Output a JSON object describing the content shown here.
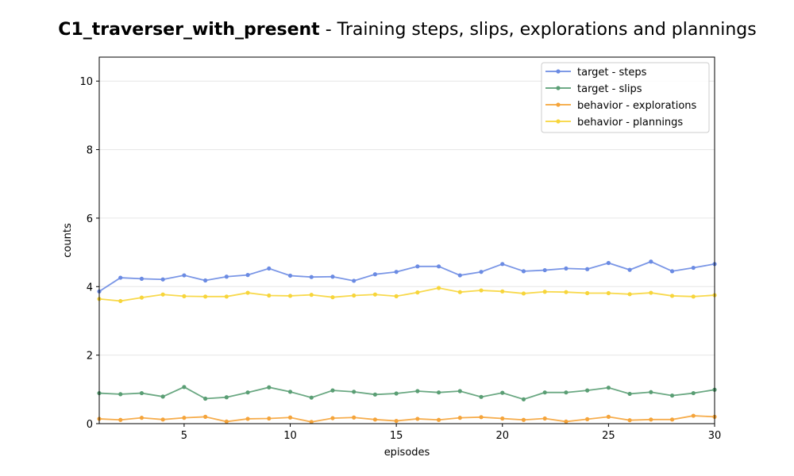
{
  "chart_data": {
    "type": "line",
    "title_bold": "C1_traverser_with_present",
    "title_rest": " - Training steps, slips, explorations and plannings",
    "xlabel": "episodes",
    "ylabel": "counts",
    "xlim": [
      1,
      30
    ],
    "ylim": [
      0,
      10.7
    ],
    "xticks": [
      5,
      10,
      15,
      20,
      25,
      30
    ],
    "yticks": [
      0,
      2,
      4,
      6,
      8,
      10
    ],
    "grid": "horizontal",
    "legend_position": "top-right",
    "x": [
      1,
      2,
      3,
      4,
      5,
      6,
      7,
      8,
      9,
      10,
      11,
      12,
      13,
      14,
      15,
      16,
      17,
      18,
      19,
      20,
      21,
      22,
      23,
      24,
      25,
      26,
      27,
      28,
      29,
      30
    ],
    "series": [
      {
        "name": "target - steps",
        "color": "#6b8be3",
        "values": [
          3.86,
          4.26,
          4.23,
          4.21,
          4.33,
          4.18,
          4.29,
          4.34,
          4.53,
          4.32,
          4.28,
          4.29,
          4.17,
          4.36,
          4.43,
          4.59,
          4.59,
          4.33,
          4.43,
          4.66,
          4.45,
          4.48,
          4.53,
          4.51,
          4.69,
          4.49,
          4.73,
          4.45,
          4.55,
          4.66
        ]
      },
      {
        "name": "target - slips",
        "color": "#5a9e74",
        "values": [
          0.89,
          0.86,
          0.89,
          0.79,
          1.07,
          0.73,
          0.77,
          0.91,
          1.06,
          0.93,
          0.76,
          0.97,
          0.93,
          0.85,
          0.88,
          0.95,
          0.91,
          0.95,
          0.78,
          0.9,
          0.71,
          0.91,
          0.91,
          0.97,
          1.05,
          0.87,
          0.92,
          0.82,
          0.89,
          0.99
        ]
      },
      {
        "name": "behavior - explorations",
        "color": "#f5a43a",
        "values": [
          0.14,
          0.11,
          0.17,
          0.12,
          0.17,
          0.2,
          0.06,
          0.14,
          0.15,
          0.18,
          0.05,
          0.16,
          0.18,
          0.12,
          0.08,
          0.14,
          0.11,
          0.17,
          0.19,
          0.15,
          0.11,
          0.15,
          0.06,
          0.13,
          0.2,
          0.1,
          0.12,
          0.12,
          0.23,
          0.2
        ]
      },
      {
        "name": "behavior - plannings",
        "color": "#f7d53a",
        "values": [
          3.64,
          3.58,
          3.68,
          3.77,
          3.72,
          3.71,
          3.71,
          3.82,
          3.74,
          3.73,
          3.76,
          3.69,
          3.74,
          3.77,
          3.72,
          3.83,
          3.96,
          3.84,
          3.89,
          3.86,
          3.8,
          3.85,
          3.84,
          3.81,
          3.81,
          3.78,
          3.82,
          3.73,
          3.71,
          3.75
        ]
      }
    ]
  }
}
